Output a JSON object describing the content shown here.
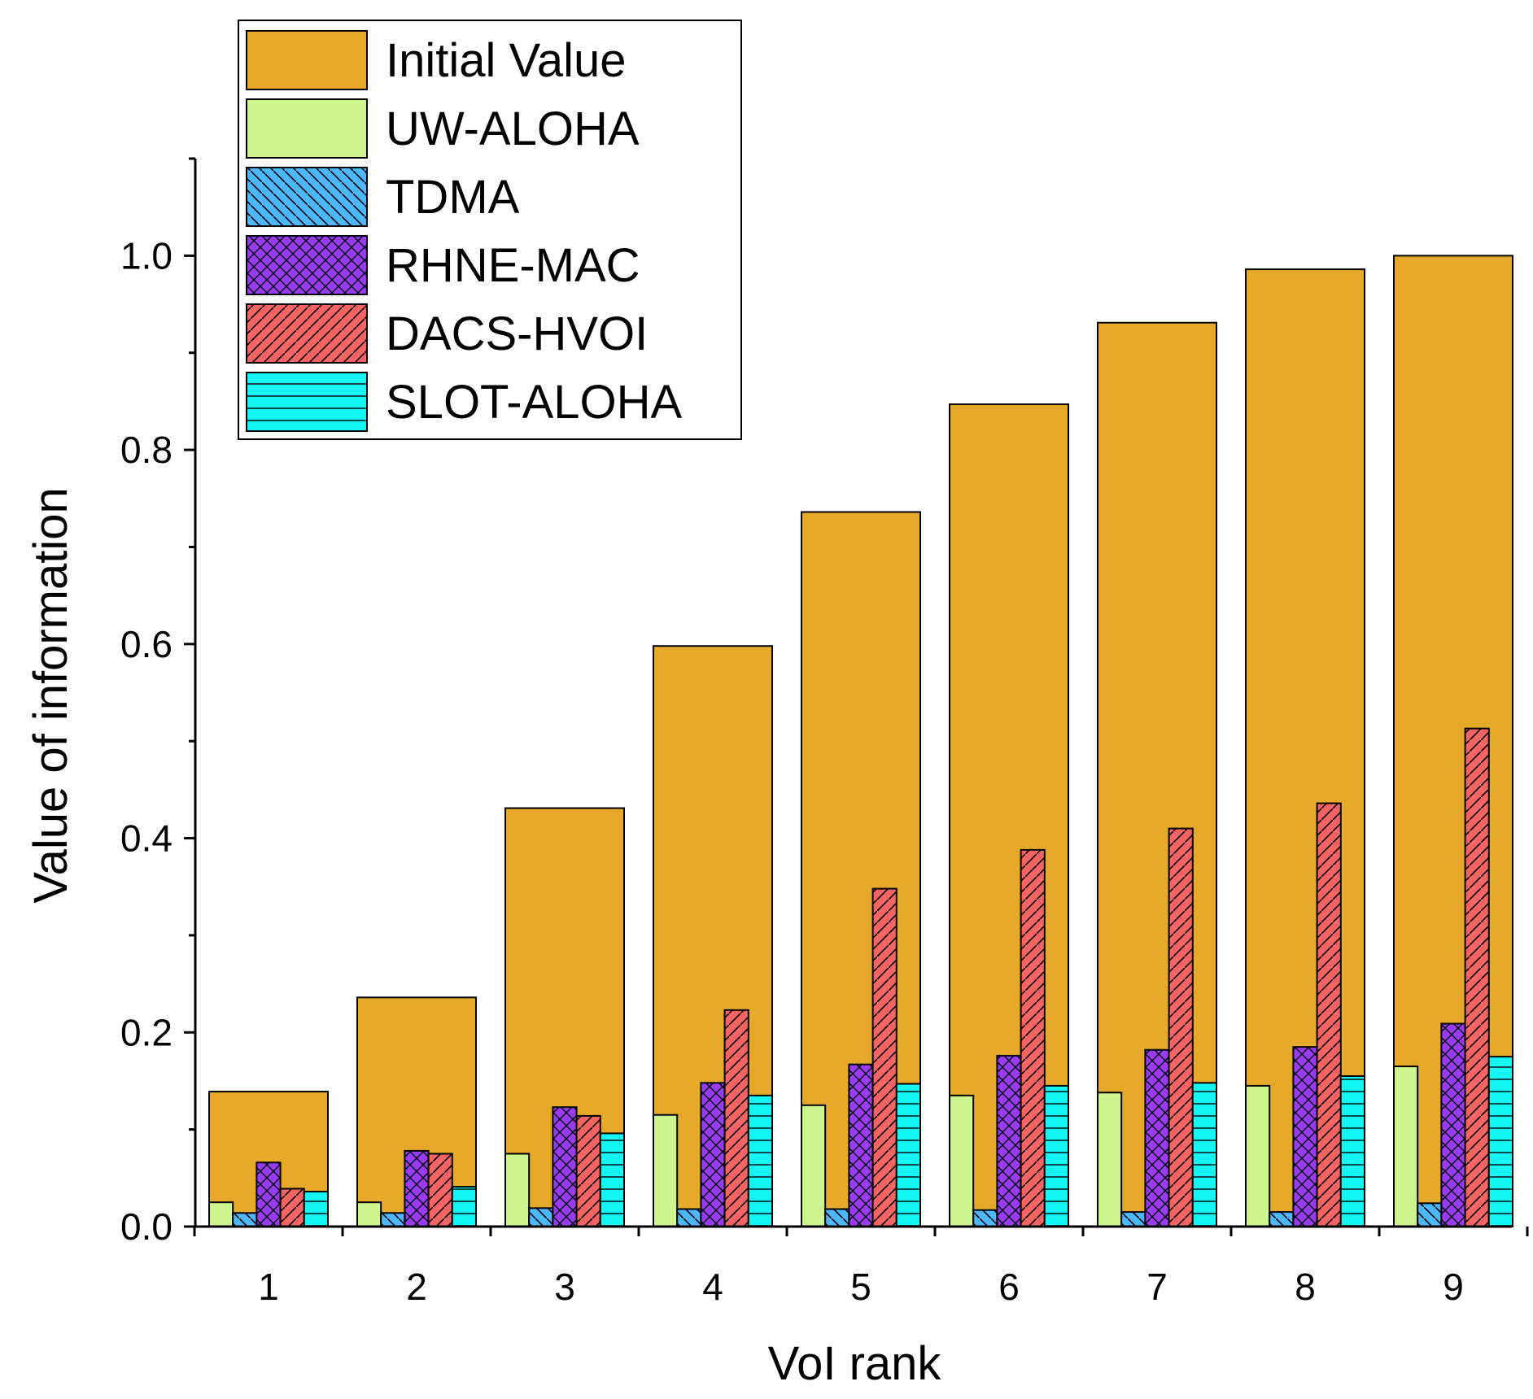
{
  "chart_data": {
    "type": "bar",
    "title": "",
    "xlabel": "VoI rank",
    "ylabel": "Value of information",
    "ylim": [
      0,
      1.1
    ],
    "yticks": [
      "0.0",
      "0.2",
      "0.4",
      "0.6",
      "0.8",
      "1.0"
    ],
    "categories": [
      "1",
      "2",
      "3",
      "4",
      "5",
      "6",
      "7",
      "8",
      "9"
    ],
    "legend_position": "top-left",
    "series": [
      {
        "name": "Initial Value",
        "color": "#e6a92a",
        "pattern": "solid",
        "values": [
          0.139,
          0.236,
          0.431,
          0.598,
          0.736,
          0.847,
          0.931,
          0.986,
          1.0
        ]
      },
      {
        "name": "UW-ALOHA",
        "color": "#ccf590",
        "pattern": "solid",
        "values": [
          0.025,
          0.025,
          0.075,
          0.115,
          0.125,
          0.135,
          0.138,
          0.145,
          0.165
        ]
      },
      {
        "name": "TDMA",
        "color": "#4db8ff",
        "pattern": "diag-back",
        "values": [
          0.014,
          0.014,
          0.019,
          0.018,
          0.018,
          0.017,
          0.015,
          0.015,
          0.024
        ]
      },
      {
        "name": "RHNE-MAC",
        "color": "#9a3cf5",
        "pattern": "crosshatch",
        "values": [
          0.066,
          0.078,
          0.123,
          0.148,
          0.167,
          0.176,
          0.182,
          0.185,
          0.209
        ]
      },
      {
        "name": "DACS-HVOI",
        "color": "#f66464",
        "pattern": "diag-fwd",
        "values": [
          0.039,
          0.075,
          0.114,
          0.223,
          0.348,
          0.388,
          0.41,
          0.436,
          0.513
        ]
      },
      {
        "name": "SLOT-ALOHA",
        "color": "#14f5f5",
        "pattern": "horizontal",
        "values": [
          0.036,
          0.041,
          0.096,
          0.135,
          0.147,
          0.145,
          0.148,
          0.155,
          0.175
        ]
      }
    ]
  }
}
